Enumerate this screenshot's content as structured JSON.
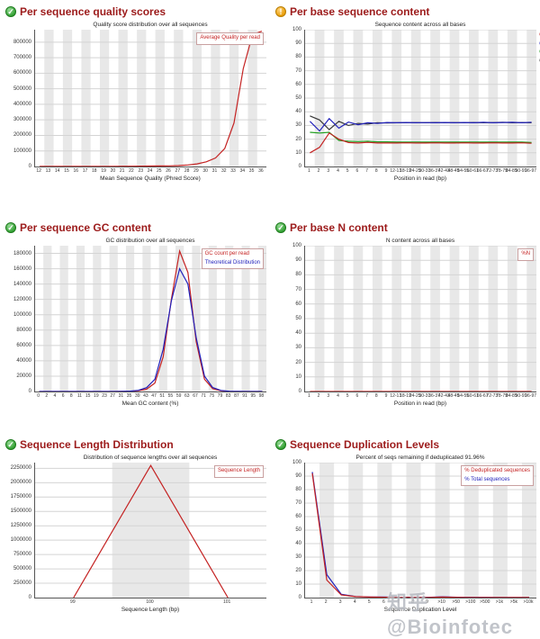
{
  "page": {
    "watermark": "知乎 @Bioinfotec"
  },
  "colors": {
    "heading": "#9c1b1b",
    "grid_line": "#d4d4d4",
    "band": "#e8e8e8",
    "red": "#c42222",
    "blue": "#2222bb",
    "green": "#1e9e1e",
    "black": "#3a3a3a"
  },
  "chart_data": [
    {
      "type": "line",
      "status": "pass",
      "heading": "Per sequence quality scores",
      "plot_title": "Quality score distribution over all sequences",
      "x_axis_label": "Mean Sequence Quality (Phred Score)",
      "y_max": 880000,
      "y_ticks": [
        0,
        100000,
        200000,
        300000,
        400000,
        500000,
        600000,
        700000,
        800000
      ],
      "x_labels": [
        "12",
        "13",
        "14",
        "15",
        "16",
        "17",
        "18",
        "19",
        "20",
        "21",
        "22",
        "23",
        "24",
        "25",
        "26",
        "27",
        "28",
        "29",
        "30",
        "31",
        "32",
        "33",
        "34",
        "35",
        "36"
      ],
      "legend": [
        {
          "label": "Average Quality per read",
          "color": "#c42222"
        }
      ],
      "legend_boxed": true,
      "series": [
        {
          "name": "Average Quality per read",
          "color": "#c42222",
          "values": [
            500,
            500,
            600,
            600,
            700,
            800,
            900,
            1000,
            1200,
            1500,
            1800,
            2200,
            2700,
            3400,
            4200,
            6000,
            10000,
            17000,
            30000,
            55000,
            115000,
            280000,
            630000,
            850000,
            870000
          ]
        }
      ]
    },
    {
      "type": "line",
      "status": "warn",
      "heading": "Per base sequence content",
      "plot_title": "Sequence content across all bases",
      "x_axis_label": "Position in read (bp)",
      "y_max": 100,
      "y_ticks": [
        0,
        10,
        20,
        30,
        40,
        50,
        60,
        70,
        80,
        90,
        100
      ],
      "x_labels": [
        "1",
        "2",
        "3",
        "4",
        "5",
        "6",
        "7",
        "8",
        "9",
        "12-13",
        "18-19",
        "24-25",
        "30-31",
        "36-37",
        "42-43",
        "48-49",
        "54-55",
        "60-61",
        "66-67",
        "72-73",
        "78-79",
        "84-85",
        "90-91",
        "96-97"
      ],
      "legend": [
        {
          "label": "%T",
          "color": "#c42222"
        },
        {
          "label": "%C",
          "color": "#2222bb"
        },
        {
          "label": "%A",
          "color": "#1e9e1e"
        },
        {
          "label": "%G",
          "color": "#3a3a3a"
        }
      ],
      "legend_boxed": false,
      "legend_clipped": true,
      "series": [
        {
          "name": "%G",
          "color": "#3a3a3a",
          "values": [
            37,
            34,
            27,
            33,
            30,
            31.5,
            31,
            32,
            31.8,
            32,
            32,
            32.1,
            32,
            32.2,
            32,
            32.1,
            32,
            32.2,
            32,
            32.1,
            32.3,
            32,
            32.2,
            32
          ]
        },
        {
          "name": "%C",
          "color": "#2222bb",
          "values": [
            33,
            26,
            35,
            28,
            32.5,
            30.5,
            32,
            31.5,
            32.2,
            32,
            32.2,
            32,
            32.1,
            32,
            32.2,
            32,
            32.2,
            32,
            32.3,
            32,
            32.2,
            32.3,
            32,
            32.4
          ]
        },
        {
          "name": "%A",
          "color": "#1e9e1e",
          "values": [
            25,
            24.5,
            25,
            19,
            18.5,
            18.2,
            18.5,
            18,
            18,
            17.8,
            17.8,
            17.9,
            17.8,
            17.8,
            17.9,
            17.8,
            17.8,
            17.9,
            17.8,
            17.8,
            17.9,
            17.8,
            17.8,
            17.5
          ]
        },
        {
          "name": "%T",
          "color": "#c42222",
          "values": [
            10,
            14,
            24.5,
            20,
            17.5,
            17.2,
            17.6,
            17.2,
            17.2,
            17.2,
            17.3,
            17.2,
            17.2,
            17.3,
            17.2,
            17.2,
            17.3,
            17.2,
            17.2,
            17.3,
            17.2,
            17.2,
            17.3,
            17
          ]
        }
      ]
    },
    {
      "type": "line",
      "status": "pass",
      "heading": "Per sequence GC content",
      "plot_title": "GC distribution over all sequences",
      "x_axis_label": "Mean GC content (%)",
      "y_max": 190000,
      "y_ticks": [
        0,
        20000,
        40000,
        60000,
        80000,
        100000,
        120000,
        140000,
        160000,
        180000
      ],
      "x_labels": [
        "0",
        "2",
        "4",
        "6",
        "8",
        "11",
        "15",
        "19",
        "23",
        "27",
        "31",
        "35",
        "39",
        "43",
        "47",
        "51",
        "55",
        "59",
        "63",
        "67",
        "71",
        "75",
        "79",
        "83",
        "87",
        "91",
        "95",
        "98"
      ],
      "legend": [
        {
          "label": "GC count per read",
          "color": "#c42222"
        },
        {
          "label": "Theoretical Distribution",
          "color": "#2222bb"
        }
      ],
      "legend_boxed": true,
      "series": [
        {
          "name": "GC count per read",
          "color": "#c42222",
          "values": [
            0,
            0,
            0,
            0,
            0,
            0,
            0,
            0,
            0,
            0,
            100,
            300,
            900,
            3000,
            11000,
            45000,
            120000,
            183000,
            155000,
            65000,
            16000,
            3800,
            900,
            250,
            0,
            0,
            0,
            0
          ]
        },
        {
          "name": "Theoretical Distribution",
          "color": "#2222bb",
          "values": [
            0,
            0,
            0,
            0,
            0,
            0,
            0,
            0,
            0,
            0,
            200,
            500,
            1500,
            5000,
            16000,
            55000,
            118000,
            160000,
            140000,
            70000,
            20000,
            5200,
            1400,
            400,
            100,
            0,
            0,
            0
          ]
        }
      ]
    },
    {
      "type": "line",
      "status": "pass",
      "heading": "Per base N content",
      "plot_title": "N content across all bases",
      "x_axis_label": "Position in read (bp)",
      "y_max": 100,
      "y_ticks": [
        0,
        10,
        20,
        30,
        40,
        50,
        60,
        70,
        80,
        90,
        100
      ],
      "x_labels": [
        "1",
        "2",
        "3",
        "4",
        "5",
        "6",
        "7",
        "8",
        "9",
        "12-13",
        "18-19",
        "24-25",
        "30-31",
        "36-37",
        "42-43",
        "48-49",
        "54-55",
        "60-61",
        "66-67",
        "72-73",
        "78-79",
        "84-85",
        "90-91",
        "96-97"
      ],
      "legend": [
        {
          "label": "%N",
          "color": "#c42222"
        }
      ],
      "legend_boxed": true,
      "series": [
        {
          "name": "%N",
          "color": "#c42222",
          "values": [
            0,
            0,
            0,
            0,
            0,
            0,
            0,
            0,
            0,
            0,
            0,
            0,
            0,
            0,
            0,
            0,
            0,
            0,
            0,
            0,
            0,
            0,
            0,
            0
          ]
        }
      ]
    },
    {
      "type": "line",
      "status": "pass",
      "heading": "Sequence Length Distribution",
      "plot_title": "Distribution of sequence lengths over all sequences",
      "x_axis_label": "Sequence Length (bp)",
      "y_max": 2350000,
      "y_ticks": [
        0,
        250000,
        500000,
        750000,
        1000000,
        1250000,
        1500000,
        1750000,
        2000000,
        2250000
      ],
      "x_labels": [
        "99",
        "100",
        "101"
      ],
      "legend": [
        {
          "label": "Sequence Length",
          "color": "#c42222"
        }
      ],
      "legend_boxed": true,
      "series": [
        {
          "name": "Sequence Length",
          "color": "#c42222",
          "values": [
            0,
            2300000,
            0
          ]
        }
      ]
    },
    {
      "type": "line",
      "status": "pass",
      "heading": "Sequence Duplication Levels",
      "plot_title": "Percent of seqs remaining if deduplicated 91.96%",
      "x_axis_label": "Sequence Duplication Level",
      "y_max": 100,
      "y_ticks": [
        0,
        10,
        20,
        30,
        40,
        50,
        60,
        70,
        80,
        90,
        100
      ],
      "x_labels": [
        "1",
        "2",
        "3",
        "4",
        "5",
        "6",
        "7",
        "8",
        "9",
        ">10",
        ">50",
        ">100",
        ">500",
        ">1k",
        ">5k",
        ">10k"
      ],
      "legend": [
        {
          "label": "% Deduplicated sequences",
          "color": "#c42222"
        },
        {
          "label": "% Total sequences",
          "color": "#2222bb"
        }
      ],
      "legend_boxed": true,
      "series": [
        {
          "name": "% Total sequences",
          "color": "#2222bb",
          "values": [
            93,
            17,
            2.5,
            0.8,
            0.5,
            0.4,
            0.3,
            0.3,
            0.2,
            0.6,
            0.3,
            0.2,
            0.2,
            0.1,
            0.1,
            0.1
          ]
        },
        {
          "name": "% Deduplicated sequences",
          "color": "#c42222",
          "values": [
            92,
            13,
            2,
            0.7,
            0.4,
            0.3,
            0.2,
            0.2,
            0.15,
            0.4,
            0.2,
            0.1,
            0.1,
            0.05,
            0.05,
            0.05
          ]
        }
      ]
    }
  ]
}
